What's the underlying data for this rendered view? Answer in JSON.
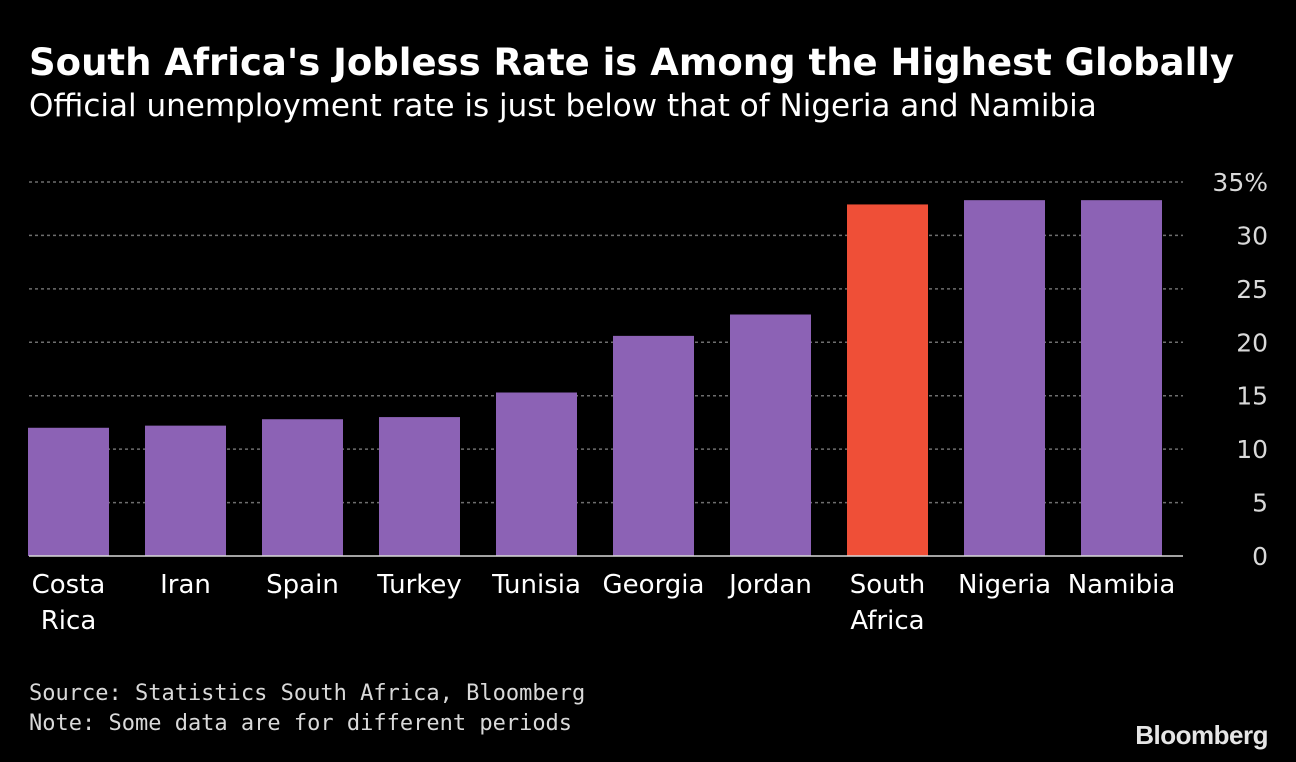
{
  "header": {
    "title": "South Africa's Jobless Rate is Among the Highest Globally",
    "subtitle": "Official unemployment rate is just below that of Nigeria and Namibia"
  },
  "chart_data": {
    "type": "bar",
    "title": "South Africa's Jobless Rate is Among the Highest Globally",
    "subtitle": "Official unemployment rate is just below that of Nigeria and Namibia",
    "categories": [
      "Costa Rica",
      "Iran",
      "Spain",
      "Turkey",
      "Tunisia",
      "Georgia",
      "Jordan",
      "South Africa",
      "Nigeria",
      "Namibia"
    ],
    "category_labels": [
      [
        "Costa",
        "Rica"
      ],
      [
        "Iran"
      ],
      [
        "Spain"
      ],
      [
        "Turkey"
      ],
      [
        "Tunisia"
      ],
      [
        "Georgia"
      ],
      [
        "Jordan"
      ],
      [
        "South",
        "Africa"
      ],
      [
        "Nigeria"
      ],
      [
        "Namibia"
      ]
    ],
    "values": [
      12.0,
      12.2,
      12.8,
      13.0,
      15.3,
      20.6,
      22.6,
      32.9,
      33.3,
      33.3
    ],
    "highlight": "South Africa",
    "ylim": [
      0,
      35
    ],
    "yticks": [
      0,
      5,
      10,
      15,
      20,
      25,
      30,
      35
    ],
    "ytick_labels": [
      "0",
      "5",
      "10",
      "15",
      "20",
      "25",
      "30",
      "35%"
    ],
    "y_axis_side": "right",
    "grid": true,
    "xlabel": "",
    "ylabel": ""
  },
  "colors": {
    "bar": "#8c62b5",
    "highlight": "#ef4f37",
    "grid": "#6e6e6e",
    "axis": "#d9d9d9",
    "text": "#ffffff"
  },
  "footer": {
    "source": "Source: Statistics South Africa, Bloomberg",
    "note": "Note: Some data are for different periods",
    "brand": "Bloomberg"
  }
}
